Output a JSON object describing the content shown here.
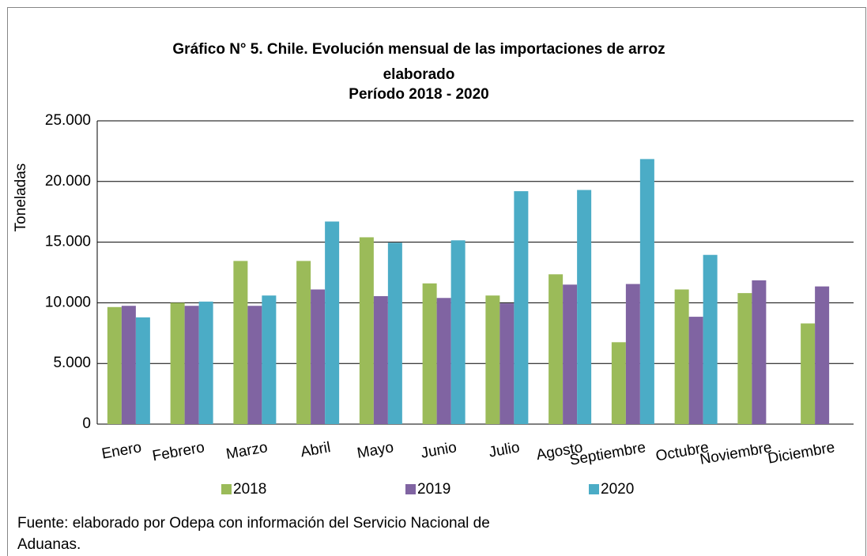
{
  "chart_data": {
    "type": "bar",
    "title": [
      "Gráfico N° 5. Chile. Evolución mensual de las importaciones de arroz",
      "elaborado",
      "Período  2018 - 2020"
    ],
    "y_label": "Toneladas",
    "categories": [
      "Enero",
      "Febrero",
      "Marzo",
      "Abril",
      "Mayo",
      "Junio",
      "Julio",
      "Agosto",
      "Septiembre",
      "Octubre",
      "Noviembre",
      "Diciembre"
    ],
    "series": [
      {
        "name": "2018",
        "color": "#9bbb59",
        "values": [
          9650,
          10000,
          13450,
          13450,
          15400,
          11600,
          10600,
          12350,
          6750,
          11100,
          10800,
          8300
        ]
      },
      {
        "name": "2019",
        "color": "#8064a2",
        "values": [
          9750,
          9750,
          9750,
          11100,
          10550,
          10400,
          9950,
          11500,
          11550,
          8850,
          11850,
          11350
        ]
      },
      {
        "name": "2020",
        "color": "#4bacc6",
        "values": [
          8800,
          10100,
          10600,
          16700,
          14950,
          15150,
          19200,
          19300,
          21850,
          13950,
          null,
          null
        ]
      }
    ],
    "ylim": [
      0,
      25000
    ],
    "yticks": [
      0,
      {
        "value": 5000,
        "label": "5.000"
      },
      {
        "value": 10000,
        "label": "10.000"
      },
      {
        "value": 15000,
        "label": "15.000"
      },
      {
        "value": 20000,
        "label": "20.000"
      },
      {
        "value": 25000,
        "label": "25.000"
      }
    ],
    "grid": true,
    "legend": "bottom",
    "source": [
      "Fuente: elaborado por Odepa con información del Servicio Nacional de",
      "Aduanas."
    ]
  }
}
